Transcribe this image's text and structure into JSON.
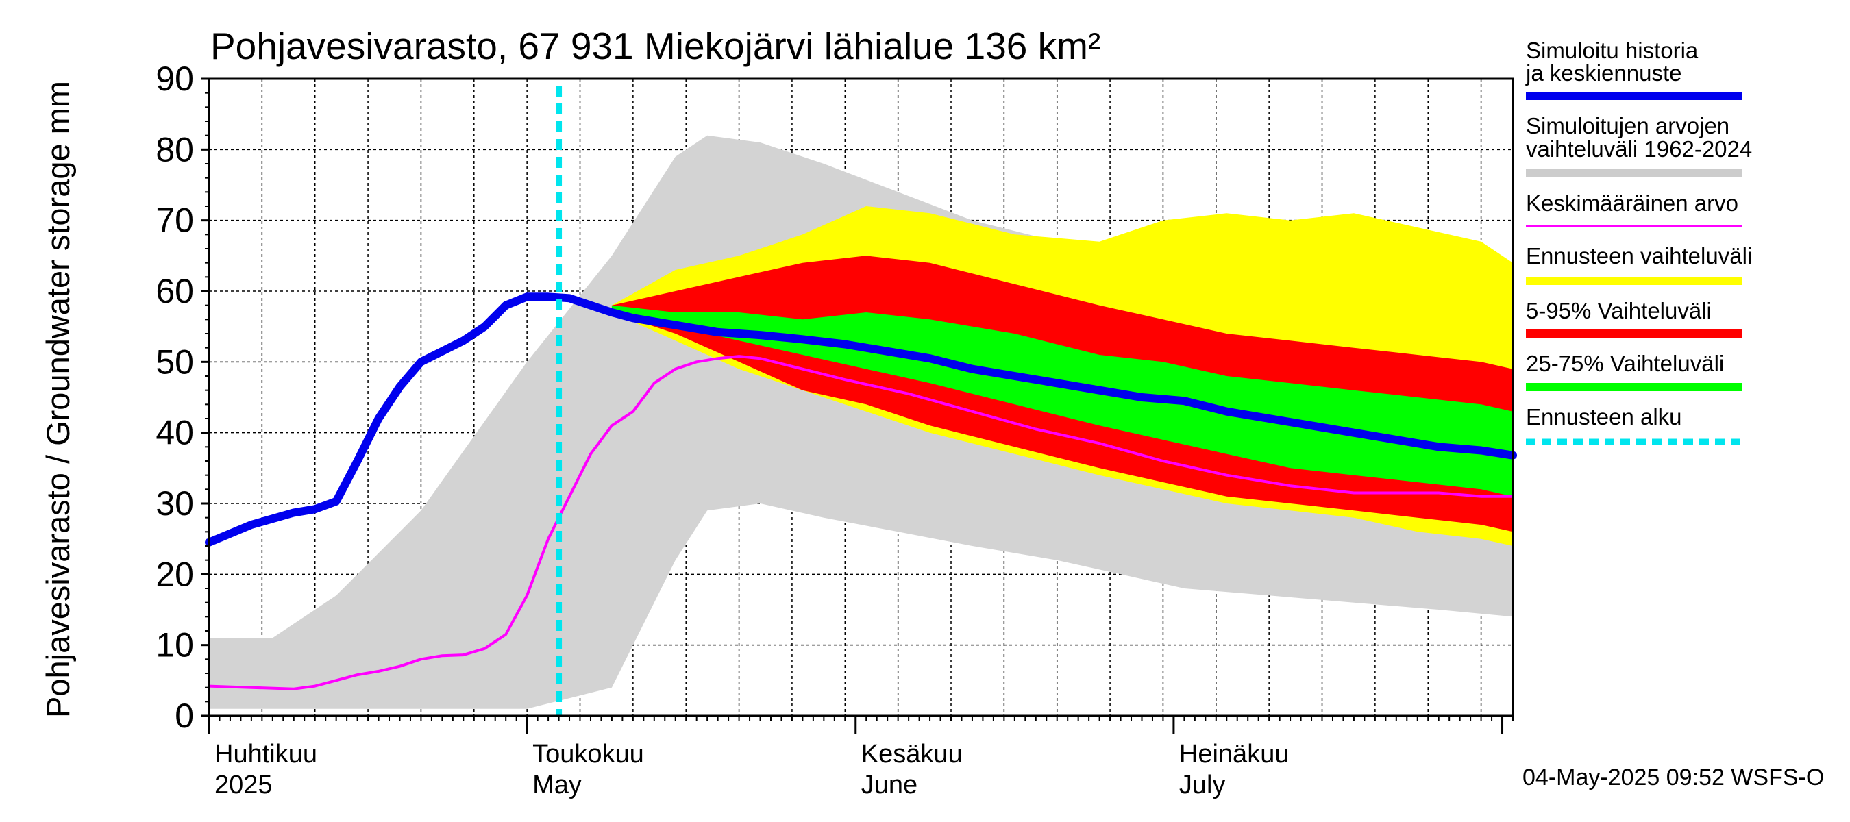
{
  "chart_data": {
    "type": "area",
    "title": "Pohjavesivarasto, 67 931 Miekojärvi lähialue 136 km²",
    "ylabel": "Pohjavesivarasto / Groundwater storage   mm",
    "ylim": [
      0,
      90
    ],
    "yticks": [
      0,
      10,
      20,
      30,
      40,
      50,
      60,
      70,
      80,
      90
    ],
    "xlim": [
      0,
      123
    ],
    "x_unit": "days since 1 April 2025",
    "grid": true,
    "forecast_start_day": 33,
    "month_labels": [
      {
        "day": 0,
        "fi": "Huhtikuu",
        "en": "2025"
      },
      {
        "day": 30,
        "fi": "Toukokuu",
        "en": "May"
      },
      {
        "day": 61,
        "fi": "Kesäkuu",
        "en": "June"
      },
      {
        "day": 91,
        "fi": "Heinäkuu",
        "en": "July"
      }
    ],
    "month_boundaries": [
      0,
      30,
      61,
      91,
      122
    ],
    "legend": [
      {
        "label": "Simuloitu historia ja keskiennuste",
        "color": "#0000ee",
        "style": "thick-line"
      },
      {
        "label": "Simuloitujen arvojen vaihteluväli 1962-2024",
        "color": "#cccccc",
        "style": "thick-line"
      },
      {
        "label": "Keskimääräinen arvo",
        "color": "#ff00ff",
        "style": "thin-line"
      },
      {
        "label": "Ennusteen vaihteluväli",
        "color": "#ffff00",
        "style": "thick-line"
      },
      {
        "label": "5-95% Vaihteluväli",
        "color": "#ff0000",
        "style": "thick-line"
      },
      {
        "label": "25-75% Vaihteluväli",
        "color": "#00ff00",
        "style": "thick-line"
      },
      {
        "label": "Ennusteen alku",
        "color": "#00e5ee",
        "style": "dashed-line"
      }
    ],
    "series": [
      {
        "name": "Simuloitujen arvojen vaihteluväli 1962-2024",
        "kind": "band",
        "color": "#d3d3d3",
        "x": [
          0,
          6,
          12,
          20,
          30,
          38,
          44,
          47,
          52,
          58,
          65,
          72,
          80,
          86,
          92,
          100,
          108,
          116,
          123
        ],
        "lower": [
          1,
          1,
          1,
          1,
          1,
          4,
          22,
          29,
          30,
          28,
          26,
          24,
          22,
          20,
          18,
          17,
          16,
          15,
          14
        ],
        "upper": [
          11,
          11,
          17,
          29,
          50,
          65,
          79,
          82,
          81,
          78,
          74,
          70,
          67,
          65,
          63,
          61,
          58,
          56,
          54
        ]
      },
      {
        "name": "Ennusteen vaihteluväli",
        "kind": "band",
        "color": "#ffff00",
        "x": [
          38,
          44,
          50,
          56,
          62,
          68,
          76,
          84,
          90,
          96,
          102,
          108,
          114,
          120,
          123
        ],
        "lower": [
          57,
          53,
          49,
          46,
          43,
          40,
          37,
          34,
          32,
          30,
          29,
          28,
          26,
          25,
          24
        ],
        "upper": [
          58,
          63,
          65,
          68,
          72,
          71,
          68,
          67,
          70,
          71,
          70,
          71,
          69,
          67,
          64
        ]
      },
      {
        "name": "5-95% Vaihteluväli",
        "kind": "band",
        "color": "#ff0000",
        "x": [
          38,
          44,
          50,
          56,
          62,
          68,
          76,
          84,
          90,
          96,
          102,
          108,
          114,
          120,
          123
        ],
        "lower": [
          57,
          54,
          50,
          46,
          44,
          41,
          38,
          35,
          33,
          31,
          30,
          29,
          28,
          27,
          26
        ],
        "upper": [
          58,
          60,
          62,
          64,
          65,
          64,
          61,
          58,
          56,
          54,
          53,
          52,
          51,
          50,
          49
        ]
      },
      {
        "name": "25-75% Vaihteluväli",
        "kind": "band",
        "color": "#00ff00",
        "x": [
          38,
          44,
          50,
          56,
          62,
          68,
          76,
          84,
          90,
          96,
          102,
          108,
          114,
          120,
          123
        ],
        "lower": [
          57,
          55,
          53,
          51,
          49,
          47,
          44,
          41,
          39,
          37,
          35,
          34,
          33,
          32,
          31
        ],
        "upper": [
          58,
          57,
          57,
          56,
          57,
          56,
          54,
          51,
          50,
          48,
          47,
          46,
          45,
          44,
          43
        ]
      },
      {
        "name": "Keskimääräinen arvo",
        "kind": "line",
        "color": "#ff00ff",
        "x": [
          0,
          4,
          8,
          10,
          12,
          14,
          16,
          18,
          20,
          22,
          24,
          26,
          28,
          30,
          32,
          34,
          36,
          38,
          40,
          42,
          44,
          46,
          48,
          50,
          52,
          56,
          60,
          66,
          72,
          78,
          84,
          90,
          96,
          102,
          108,
          112,
          116,
          120,
          123
        ],
        "values": [
          4.2,
          4.0,
          3.8,
          4.2,
          5.0,
          5.8,
          6.3,
          7.0,
          8.0,
          8.5,
          8.6,
          9.5,
          11.5,
          17,
          25,
          31,
          37,
          41,
          43,
          47,
          49,
          50,
          50.5,
          50.8,
          50.5,
          49,
          47.5,
          45.5,
          43,
          40.5,
          38.5,
          36,
          34,
          32.5,
          31.5,
          31.5,
          31.5,
          31,
          31
        ]
      },
      {
        "name": "Simuloitu historia ja keskiennuste",
        "kind": "line",
        "color": "#0000ee",
        "x": [
          0,
          4,
          8,
          10,
          12,
          14,
          16,
          18,
          20,
          22,
          24,
          26,
          28,
          30,
          32,
          34,
          36,
          38,
          40,
          44,
          48,
          52,
          56,
          60,
          64,
          68,
          72,
          76,
          80,
          84,
          88,
          92,
          96,
          100,
          104,
          108,
          112,
          116,
          120,
          123
        ],
        "values": [
          24.5,
          27,
          28.7,
          29.2,
          30.3,
          36,
          42,
          46.5,
          50,
          51.5,
          53,
          55,
          58,
          59.2,
          59.2,
          59,
          58,
          57,
          56.2,
          55.2,
          54.2,
          53.8,
          53.2,
          52.5,
          51.5,
          50.5,
          49,
          48,
          47,
          46,
          45,
          44.5,
          43,
          42,
          41,
          40,
          39,
          38,
          37.5,
          36.8
        ]
      }
    ],
    "footer": "04-May-2025 09:52 WSFS-O"
  }
}
